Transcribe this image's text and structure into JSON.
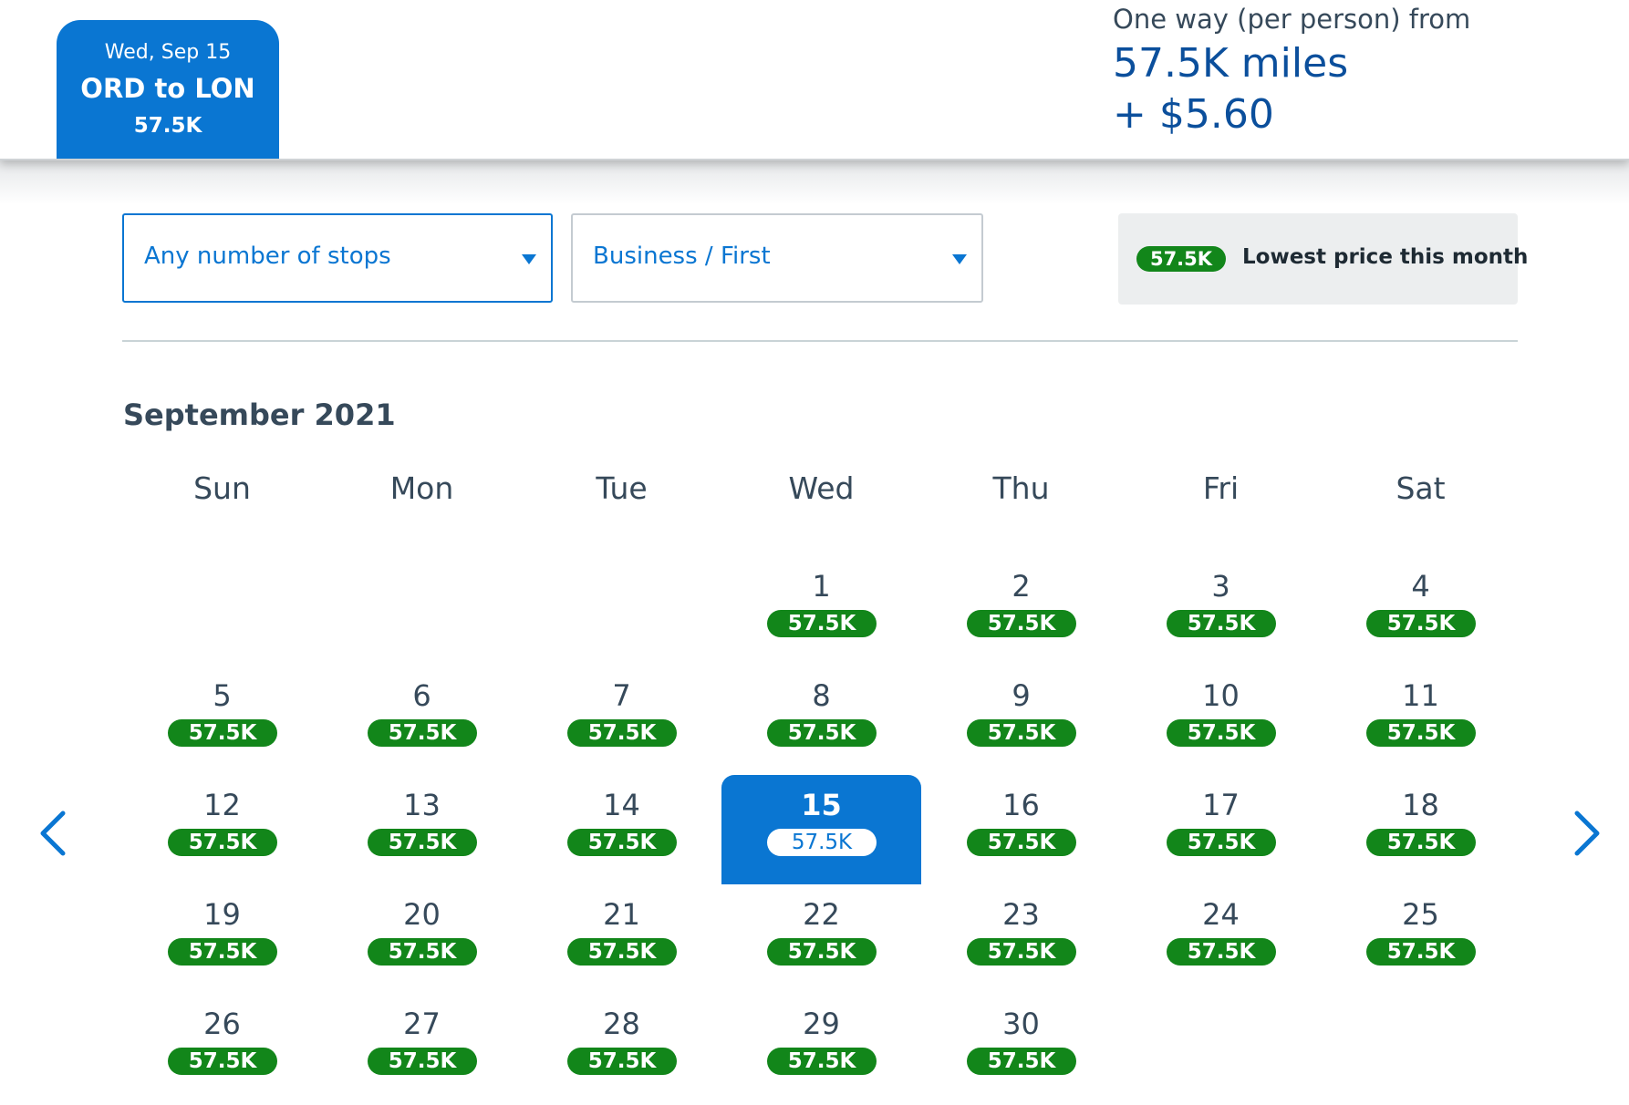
{
  "header": {
    "tab": {
      "date": "Wed, Sep 15",
      "route": "ORD to LON",
      "price": "57.5K"
    },
    "fare": {
      "label": "One way (per person) from",
      "miles": "57.5K miles",
      "cash": "+ $5.60"
    }
  },
  "filters": {
    "stops": {
      "value": "Any number of stops"
    },
    "cabin": {
      "value": "Business / First"
    },
    "legend": {
      "badge": "57.5K",
      "text": "Lowest price this month"
    }
  },
  "calendar": {
    "month": "September 2021",
    "weekdays": [
      "Sun",
      "Mon",
      "Tue",
      "Wed",
      "Thu",
      "Fri",
      "Sat"
    ],
    "days": [
      {
        "day": "1",
        "price": "57.5K"
      },
      {
        "day": "2",
        "price": "57.5K"
      },
      {
        "day": "3",
        "price": "57.5K"
      },
      {
        "day": "4",
        "price": "57.5K"
      },
      {
        "day": "5",
        "price": "57.5K"
      },
      {
        "day": "6",
        "price": "57.5K"
      },
      {
        "day": "7",
        "price": "57.5K"
      },
      {
        "day": "8",
        "price": "57.5K"
      },
      {
        "day": "9",
        "price": "57.5K"
      },
      {
        "day": "10",
        "price": "57.5K"
      },
      {
        "day": "11",
        "price": "57.5K"
      },
      {
        "day": "12",
        "price": "57.5K"
      },
      {
        "day": "13",
        "price": "57.5K"
      },
      {
        "day": "14",
        "price": "57.5K"
      },
      {
        "day": "15",
        "price": "57.5K",
        "selected": true
      },
      {
        "day": "16",
        "price": "57.5K"
      },
      {
        "day": "17",
        "price": "57.5K"
      },
      {
        "day": "18",
        "price": "57.5K"
      },
      {
        "day": "19",
        "price": "57.5K"
      },
      {
        "day": "20",
        "price": "57.5K"
      },
      {
        "day": "21",
        "price": "57.5K"
      },
      {
        "day": "22",
        "price": "57.5K"
      },
      {
        "day": "23",
        "price": "57.5K"
      },
      {
        "day": "24",
        "price": "57.5K"
      },
      {
        "day": "25",
        "price": "57.5K"
      },
      {
        "day": "26",
        "price": "57.5K"
      },
      {
        "day": "27",
        "price": "57.5K"
      },
      {
        "day": "28",
        "price": "57.5K"
      },
      {
        "day": "29",
        "price": "57.5K"
      },
      {
        "day": "30",
        "price": "57.5K"
      }
    ]
  },
  "nav": {
    "prev_icon": "chevron-left-icon",
    "next_icon": "chevron-right-icon"
  },
  "colors": {
    "primary_blue": "#0a76d2",
    "dark_blue_text": "#0b4f9c",
    "price_green": "#12861a",
    "text_slate": "#36495a",
    "legend_bg": "#eceeef"
  }
}
